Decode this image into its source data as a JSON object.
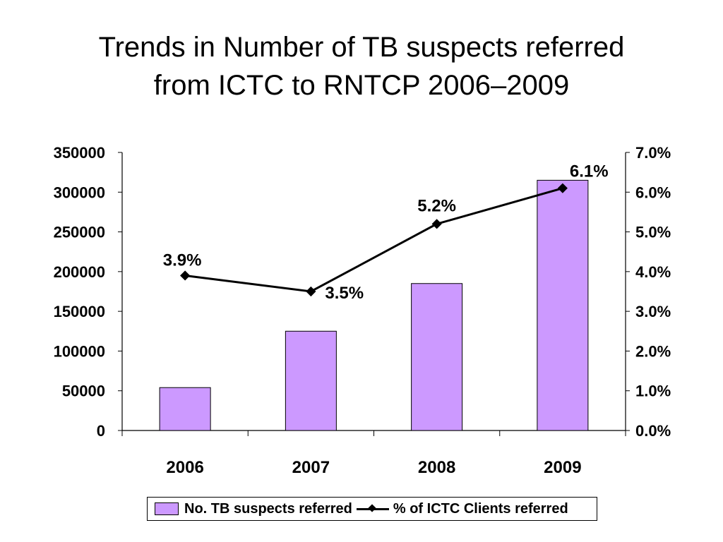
{
  "slide": {
    "title_line1": "Trends in Number of TB suspects referred",
    "title_line2": "from ICTC to RNTCP 2006–2009"
  },
  "colors": {
    "bar_fill": "#cc99ff",
    "bar_stroke": "#000000",
    "line_color": "#000000"
  },
  "chart_data": {
    "type": "bar",
    "categories": [
      "2006",
      "2007",
      "2008",
      "2009"
    ],
    "series": [
      {
        "name": "No. TB suspects referred",
        "type": "bar",
        "axis": "left",
        "values": [
          54000,
          125000,
          185000,
          315000
        ]
      },
      {
        "name": "% of ICTC Clients referred",
        "type": "line",
        "axis": "right",
        "values": [
          3.9,
          3.5,
          5.2,
          6.1
        ],
        "data_labels": [
          "3.9%",
          "3.5%",
          "5.2%",
          "6.1%"
        ]
      }
    ],
    "ylim": [
      0,
      350000
    ],
    "y_ticks": [
      "0",
      "50000",
      "100000",
      "150000",
      "200000",
      "250000",
      "300000",
      "350000"
    ],
    "y2lim": [
      0,
      7
    ],
    "y2_ticks": [
      "0.0%",
      "1.0%",
      "2.0%",
      "3.0%",
      "4.0%",
      "5.0%",
      "6.0%",
      "7.0%"
    ],
    "grid": false,
    "legend_position": "bottom"
  }
}
